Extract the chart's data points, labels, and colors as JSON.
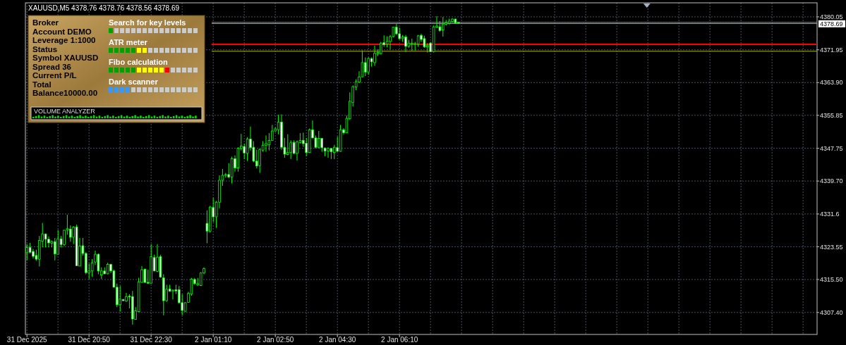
{
  "chart_data": {
    "type": "candlestick",
    "title": "XAUUSD,M5  4378.76 4378.76 4378.56 4378.69",
    "color": "#00ff00",
    "annotations": [
      "Broker",
      "Account DEMO",
      "Leverage 1:1000",
      "Status",
      "Symbol XAUUSD",
      "Spread  36",
      "Current P/L",
      "Total",
      "Balance10000.00",
      "Search for key levels",
      "ATR meter",
      "Fibo calculation",
      "Dark scanner",
      "VOLUME ANALYZER"
    ],
    "categories": [
      "31 Dec 2025",
      null,
      null,
      null,
      null,
      null,
      null,
      null,
      null,
      null,
      null,
      null,
      null,
      null,
      null,
      null,
      null,
      null,
      null,
      null,
      "31 Dec 20:50",
      null,
      null,
      null,
      null,
      null,
      null,
      null,
      null,
      null,
      null,
      null,
      null,
      null,
      null,
      null,
      null,
      null,
      null,
      null,
      "31 Dec 22:30",
      null,
      null,
      null,
      null,
      null,
      null,
      null,
      null,
      null,
      null,
      null,
      null,
      null,
      null,
      null,
      null,
      null,
      null,
      null,
      "2 Jan 01:10",
      null,
      null,
      null,
      null,
      null,
      null,
      null,
      null,
      null,
      null,
      null,
      null,
      null,
      null,
      null,
      null,
      null,
      null,
      null,
      "2 Jan 02:50",
      null,
      null,
      null,
      null,
      null,
      null,
      null,
      null,
      null,
      null,
      null,
      null,
      null,
      null,
      null,
      null,
      null,
      null,
      null,
      "2 Jan 04:30",
      null,
      null,
      null,
      null,
      null,
      null,
      null,
      null,
      null,
      null,
      null,
      null,
      null,
      null,
      null,
      null,
      null,
      null,
      null,
      "2 Jan 06:10",
      null,
      null,
      null,
      null,
      null,
      null,
      null,
      null,
      null,
      null,
      null,
      null,
      null,
      null,
      null,
      null,
      null,
      null,
      null,
      null,
      null,
      null,
      null,
      null,
      null,
      null,
      null,
      null,
      null,
      null,
      null,
      null,
      null,
      null,
      null,
      null,
      null,
      null,
      null,
      null,
      null,
      null,
      null,
      null,
      null,
      null,
      null,
      null,
      null,
      null,
      null,
      null,
      null,
      null,
      null,
      null,
      null,
      null,
      null,
      null,
      null,
      null,
      null,
      null,
      null,
      null,
      null,
      null,
      null,
      null,
      null,
      null,
      null,
      null,
      null,
      null,
      null,
      null,
      null,
      null,
      null,
      null,
      null,
      null,
      null,
      null,
      null,
      null,
      null,
      null,
      null,
      null,
      null,
      null,
      null,
      null,
      null,
      null,
      null,
      null,
      null,
      null,
      null,
      null,
      null,
      null,
      null,
      null,
      null,
      null,
      null,
      null,
      null,
      null,
      null,
      null,
      null,
      null,
      null,
      null,
      null,
      null,
      null,
      null,
      null,
      null,
      null,
      null,
      null,
      null,
      null,
      null,
      null,
      null
    ],
    "ohlc": [
      [
        4322.1,
        4324.2,
        4320.2,
        4323.4
      ],
      [
        4323.4,
        4324.5,
        4321.9,
        4322.2
      ],
      [
        4322.4,
        4323.0,
        4320.7,
        4321.2
      ],
      [
        4321.4,
        4322.8,
        4320.1,
        4320.5
      ],
      [
        4320.5,
        4326.2,
        4318.7,
        4325.1
      ],
      [
        4324.9,
        4329.4,
        4323.4,
        4326.7
      ],
      [
        4326.7,
        4326.8,
        4323.4,
        4325.4
      ],
      [
        4325.4,
        4326.1,
        4323.4,
        4324.5
      ],
      [
        4324.4,
        4325.1,
        4323.4,
        4324.8
      ],
      [
        4324.8,
        4325.7,
        4320.2,
        4321.8
      ],
      [
        4321.7,
        4327.7,
        4321.7,
        4325.5
      ],
      [
        4325.5,
        4326.2,
        4323.4,
        4324.1
      ],
      [
        4324.1,
        4327.7,
        4323.7,
        4327.6
      ],
      [
        4327.7,
        4331.4,
        4326.5,
        4328.0
      ],
      [
        4327.9,
        4328.8,
        4324.8,
        4325.9
      ],
      [
        4325.9,
        4328.6,
        4324.2,
        4328.4
      ],
      [
        4328.4,
        4329.0,
        4318.8,
        4318.9
      ],
      [
        4318.8,
        4325.7,
        4318.8,
        4323.7
      ],
      [
        4323.8,
        4325.7,
        4321.4,
        4321.9
      ],
      [
        4321.9,
        4322.2,
        4316.8,
        4317.2
      ],
      [
        4317.1,
        4319.4,
        4315.6,
        4317.6
      ],
      [
        4317.6,
        4320.5,
        4316.2,
        4319.6
      ],
      [
        4319.8,
        4322.6,
        4319.1,
        4321.7
      ],
      [
        4321.7,
        4321.9,
        4316.8,
        4317.6
      ],
      [
        4316.6,
        4318.5,
        4315.6,
        4317.6
      ],
      [
        4317.6,
        4318.5,
        4316.8,
        4316.9
      ],
      [
        4316.9,
        4319.6,
        4316.8,
        4319.2
      ],
      [
        4319.2,
        4319.4,
        4317.1,
        4317.6
      ],
      [
        4317.6,
        4317.9,
        4313.6,
        4313.6
      ],
      [
        4313.6,
        4314.5,
        4308.7,
        4309.3
      ],
      [
        4309.3,
        4313.9,
        4307.6,
        4310.7
      ],
      [
        4310.6,
        4310.7,
        4310.2,
        4310.3
      ],
      [
        4310.2,
        4312.2,
        4310.0,
        4311.3
      ],
      [
        4311.4,
        4311.9,
        4308.4,
        4311.2
      ],
      [
        4311.3,
        4312.7,
        4304.4,
        4305.8
      ],
      [
        4305.7,
        4308.7,
        4305.6,
        4307.8
      ],
      [
        4307.6,
        4315.9,
        4307.5,
        4314.9
      ],
      [
        4314.8,
        4318.8,
        4314.7,
        4317.9
      ],
      [
        4318.0,
        4318.2,
        4314.6,
        4314.8
      ],
      [
        4314.8,
        4317.9,
        4314.5,
        4314.6
      ],
      [
        4314.6,
        4324.2,
        4314.5,
        4321.1
      ],
      [
        4320.9,
        4321.6,
        4317.5,
        4317.6
      ],
      [
        4317.5,
        4324.2,
        4317.3,
        4321.0
      ],
      [
        4321.1,
        4321.6,
        4315.9,
        4316.1
      ],
      [
        4315.9,
        4316.8,
        4306.7,
        4310.3
      ],
      [
        4310.3,
        4314.2,
        4310.0,
        4313.1
      ],
      [
        4313.2,
        4314.2,
        4312.5,
        4312.6
      ],
      [
        4312.7,
        4313.0,
        4310.6,
        4312.9
      ],
      [
        4313.0,
        4314.2,
        4311.9,
        4312.7
      ],
      [
        4313.0,
        4313.9,
        4309.6,
        4309.8
      ],
      [
        4309.8,
        4311.9,
        4306.7,
        4307.9
      ],
      [
        4307.7,
        4309.9,
        4307.6,
        4309.8
      ],
      [
        4309.9,
        4312.5,
        4309.8,
        4312.1
      ],
      [
        4311.9,
        4315.9,
        4311.5,
        4315.6
      ],
      [
        4315.5,
        4315.9,
        4314.2,
        4314.5
      ],
      [
        4314.2,
        4315.9,
        4313.9,
        4314.5
      ],
      [
        4314.0,
        4317.3,
        4313.9,
        4317.1
      ],
      [
        4317.1,
        4318.5,
        4316.8,
        4318.2
      ],
      [
        4329.3,
        4332.5,
        4324.4,
        4327.4
      ],
      [
        4327.4,
        4333.6,
        4327.0,
        4333.3
      ],
      [
        4333.2,
        4335.6,
        4329.6,
        4330.9
      ],
      [
        4330.9,
        4334.8,
        4328.2,
        4334.5
      ],
      [
        4334.5,
        4341.1,
        4333.0,
        4339.9
      ],
      [
        4339.9,
        4342.7,
        4338.5,
        4341.1
      ],
      [
        4341.1,
        4341.7,
        4340.5,
        4341.3
      ],
      [
        4341.3,
        4344.1,
        4340.4,
        4340.7
      ],
      [
        4340.7,
        4345.7,
        4339.1,
        4345.2
      ],
      [
        4345.2,
        4346.0,
        4342.0,
        4342.9
      ],
      [
        4342.9,
        4348.0,
        4342.0,
        4347.8
      ],
      [
        4347.8,
        4351.3,
        4347.2,
        4348.3
      ],
      [
        4348.2,
        4348.9,
        4345.1,
        4346.6
      ],
      [
        4346.5,
        4350.5,
        4344.6,
        4350.0
      ],
      [
        4350.0,
        4353.1,
        4347.2,
        4347.9
      ],
      [
        4348.0,
        4349.5,
        4344.3,
        4344.6
      ],
      [
        4344.6,
        4347.4,
        4342.8,
        4343.4
      ],
      [
        4343.5,
        4347.7,
        4341.7,
        4347.4
      ],
      [
        4347.3,
        4349.5,
        4346.9,
        4348.5
      ],
      [
        4348.5,
        4350.9,
        4346.9,
        4348.9
      ],
      [
        4348.6,
        4351.5,
        4347.2,
        4349.7
      ],
      [
        4349.7,
        4353.5,
        4349.6,
        4352.0
      ],
      [
        4352.0,
        4352.9,
        4351.8,
        4352.5
      ],
      [
        4352.3,
        4356.0,
        4351.2,
        4354.2
      ],
      [
        4354.2,
        4356.1,
        4347.4,
        4348.0
      ],
      [
        4348.0,
        4350.3,
        4345.4,
        4346.3
      ],
      [
        4346.2,
        4351.2,
        4346.0,
        4346.7
      ],
      [
        4346.7,
        4349.7,
        4345.1,
        4349.1
      ],
      [
        4349.2,
        4349.7,
        4346.3,
        4346.5
      ],
      [
        4346.5,
        4349.7,
        4344.7,
        4349.3
      ],
      [
        4349.2,
        4351.5,
        4348.9,
        4349.7
      ],
      [
        4349.7,
        4351.6,
        4348.1,
        4348.9
      ],
      [
        4349.0,
        4350.3,
        4345.8,
        4346.7
      ],
      [
        4346.7,
        4352.6,
        4346.6,
        4352.3
      ],
      [
        4352.3,
        4354.6,
        4350.2,
        4350.3
      ],
      [
        4350.3,
        4350.9,
        4347.7,
        4348.0
      ],
      [
        4348.0,
        4352.0,
        4347.7,
        4350.2
      ],
      [
        4350.2,
        4350.3,
        4346.9,
        4347.9
      ],
      [
        4347.8,
        4348.0,
        4345.8,
        4347.1
      ],
      [
        4347.1,
        4348.0,
        4345.4,
        4347.7
      ],
      [
        4347.7,
        4347.8,
        4345.1,
        4346.9
      ],
      [
        4346.7,
        4348.6,
        4345.1,
        4348.0
      ],
      [
        4347.9,
        4350.6,
        4346.9,
        4347.0
      ],
      [
        4347.0,
        4353.5,
        4346.9,
        4352.3
      ],
      [
        4352.3,
        4352.7,
        4351.2,
        4351.6
      ],
      [
        4351.6,
        4355.8,
        4351.5,
        4355.1
      ],
      [
        4355.0,
        4361.5,
        4354.8,
        4359.3
      ],
      [
        4359.0,
        4363.2,
        4358.0,
        4362.9
      ],
      [
        4362.8,
        4364.7,
        4362.0,
        4364.1
      ],
      [
        4364.0,
        4366.7,
        4363.8,
        4365.3
      ],
      [
        4365.3,
        4371.8,
        4365.2,
        4368.8
      ],
      [
        4368.8,
        4370.1,
        4365.5,
        4366.5
      ],
      [
        4366.5,
        4370.1,
        4365.8,
        4369.8
      ],
      [
        4369.8,
        4370.1,
        4367.8,
        4369.0
      ],
      [
        4368.8,
        4373.0,
        4368.0,
        4371.1
      ],
      [
        4371.0,
        4372.1,
        4370.4,
        4371.3
      ],
      [
        4371.0,
        4373.9,
        4370.9,
        4373.6
      ],
      [
        4373.7,
        4375.5,
        4372.7,
        4373.2
      ],
      [
        4373.4,
        4375.3,
        4372.6,
        4374.0
      ],
      [
        4374.0,
        4375.6,
        4372.0,
        4375.2
      ],
      [
        4375.2,
        4377.6,
        4375.0,
        4377.5
      ],
      [
        4377.5,
        4378.3,
        4375.6,
        4375.9
      ],
      [
        4375.9,
        4377.4,
        4374.4,
        4374.7
      ],
      [
        4374.7,
        4375.6,
        4373.9,
        4375.1
      ],
      [
        4375.1,
        4375.6,
        4371.4,
        4372.8
      ],
      [
        4372.8,
        4374.4,
        4372.4,
        4373.6
      ],
      [
        4373.4,
        4374.7,
        4371.7,
        4373.6
      ],
      [
        4373.4,
        4373.9,
        4371.8,
        4373.5
      ],
      [
        4373.4,
        4375.6,
        4372.7,
        4375.4
      ],
      [
        4375.5,
        4375.9,
        4373.9,
        4374.5
      ],
      [
        4374.7,
        4375.4,
        4372.4,
        4372.7
      ],
      [
        4372.7,
        4373.6,
        4371.3,
        4373.0
      ],
      [
        4373.6,
        4373.9,
        4371.4,
        4371.5
      ],
      [
        4371.5,
        4377.9,
        4371.3,
        4377.6
      ],
      [
        4377.5,
        4380.2,
        4377.3,
        4377.8
      ],
      [
        4377.6,
        4379.0,
        4376.4,
        4376.7
      ],
      [
        4376.8,
        4380.0,
        4375.2,
        4378.3
      ],
      [
        4378.2,
        4379.3,
        4377.9,
        4378.6
      ],
      [
        4378.5,
        4379.6,
        4378.2,
        4379.0
      ],
      [
        4378.9,
        4379.7,
        4378.7,
        4379.5
      ],
      [
        4379.5,
        4379.6,
        4378.5,
        4378.6
      ],
      [
        4378.76,
        4378.76,
        4378.56,
        4378.69
      ],
      null,
      null,
      null,
      null,
      null,
      null,
      null,
      null,
      null,
      null,
      null,
      null,
      null,
      null,
      null,
      null,
      null,
      null,
      null,
      null,
      null,
      null,
      null,
      null,
      null,
      null,
      null,
      null,
      null,
      null,
      null,
      null,
      null,
      null,
      null,
      null,
      null,
      null,
      null,
      null,
      null,
      null,
      null,
      null,
      null,
      null,
      null,
      null,
      null,
      null,
      null,
      null,
      null,
      null,
      null,
      null,
      null,
      null,
      null,
      null,
      null,
      null,
      null,
      null,
      null,
      null,
      null,
      null,
      null,
      null,
      null,
      null,
      null,
      null,
      null,
      null,
      null,
      null,
      null,
      null,
      null,
      null,
      null,
      null,
      null,
      null,
      null,
      null,
      null,
      null,
      null,
      null,
      null,
      null,
      null,
      null,
      null,
      null,
      null,
      null,
      null,
      null,
      null,
      null,
      null,
      null,
      null,
      null,
      null,
      null,
      null,
      null,
      null,
      null,
      null
    ],
    "ylim": [
      4302.0,
      4383.5
    ],
    "yticks": [
      4380.05,
      {
        "value": 4371.95,
        "label": "4371.95"
      },
      {
        "value": 4363.9,
        "label": "4363.90"
      },
      4355.85,
      4347.75,
      {
        "value": 4339.7,
        "label": "4339.70"
      },
      4331.6,
      4323.55,
      {
        "value": 4315.5,
        "label": "4315.50"
      },
      {
        "value": 4307.4,
        "label": "4307.40"
      }
    ],
    "ref_lines": [
      {
        "axis": "y",
        "value": 4378.69,
        "label": "4378.69",
        "color": "#8090a8"
      },
      {
        "axis": "y",
        "value": 4373.3,
        "color": "#ff0000"
      },
      {
        "axis": "y",
        "value": 4378.4,
        "color": "#b0b000"
      },
      {
        "axis": "y",
        "value": 4371.6,
        "color": "#b0b000"
      }
    ],
    "grid": true
  }
}
